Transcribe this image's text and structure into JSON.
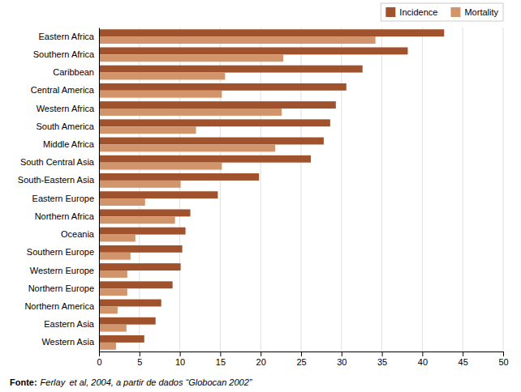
{
  "chart_data": {
    "type": "bar",
    "orientation": "horizontal",
    "categories": [
      "Eastern Africa",
      "Southern Africa",
      "Caribbean",
      "Central America",
      "Western Africa",
      "South America",
      "Middle Africa",
      "South Central Asia",
      "South-Eastern Asia",
      "Eastern Europe",
      "Northern Africa",
      "Oceania",
      "Southern Europe",
      "Western Europe",
      "Northern Europe",
      "Northern America",
      "Eastern Asia",
      "Western Asia"
    ],
    "series": [
      {
        "name": "Incidence",
        "color": "#A0522D",
        "values": [
          42.7,
          38.2,
          32.6,
          30.6,
          29.3,
          28.6,
          27.8,
          26.2,
          19.8,
          14.7,
          11.3,
          10.7,
          10.3,
          10.1,
          9.1,
          7.7,
          7.0,
          5.6
        ]
      },
      {
        "name": "Mortality",
        "color": "#D2956B",
        "values": [
          34.2,
          22.8,
          15.6,
          15.2,
          22.6,
          12.0,
          21.8,
          15.2,
          10.1,
          5.7,
          9.4,
          4.5,
          3.9,
          3.5,
          3.5,
          2.3,
          3.4,
          2.1
        ]
      }
    ],
    "xlim": [
      0,
      50
    ],
    "xticks": [
      0,
      5,
      10,
      15,
      20,
      25,
      30,
      35,
      40,
      45,
      50
    ],
    "grid": true,
    "legend": "upper right",
    "annotations": [
      "Fonte:",
      "Ferlay  et al, 2004, a partir de dados “Globocan 2002”"
    ]
  }
}
